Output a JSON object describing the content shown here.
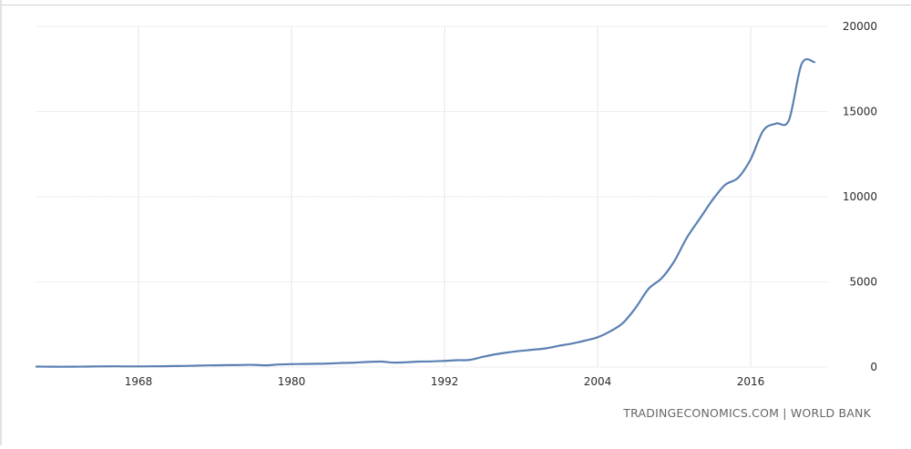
{
  "source_text": "TRADINGECONOMICS.COM | WORLD BANK",
  "colors": {
    "line": "#5b80b2",
    "grid": "#e6e6e6",
    "axis_text": "#2b2b2b",
    "source": "#666666"
  },
  "chart_data": {
    "type": "line",
    "title": "",
    "xlabel": "",
    "ylabel": "",
    "xlim": [
      1960,
      2022
    ],
    "ylim": [
      0,
      20000
    ],
    "x_ticks": [
      1968,
      1980,
      1992,
      2004,
      2016
    ],
    "y_ticks": [
      0,
      5000,
      10000,
      15000,
      20000
    ],
    "grid": true,
    "legend": "none",
    "series": [
      {
        "x": [
          1960,
          1961,
          1962,
          1963,
          1964,
          1965,
          1966,
          1967,
          1968,
          1969,
          1970,
          1971,
          1972,
          1973,
          1974,
          1975,
          1976,
          1977,
          1978,
          1979,
          1980,
          1981,
          1982,
          1983,
          1984,
          1985,
          1986,
          1987,
          1988,
          1989,
          1990,
          1991,
          1992,
          1993,
          1994,
          1995,
          1996,
          1997,
          1998,
          1999,
          2000,
          2001,
          2002,
          2003,
          2004,
          2005,
          2006,
          2007,
          2008,
          2009,
          2010,
          2011,
          2012,
          2013,
          2014,
          2015,
          2016,
          2017,
          2018,
          2019,
          2020,
          2021
        ],
        "y": [
          25,
          20,
          18,
          22,
          28,
          35,
          45,
          40,
          40,
          45,
          50,
          60,
          70,
          90,
          100,
          110,
          120,
          130,
          100,
          150,
          170,
          180,
          190,
          210,
          240,
          260,
          300,
          320,
          260,
          280,
          320,
          330,
          360,
          400,
          420,
          600,
          750,
          860,
          950,
          1020,
          1100,
          1250,
          1380,
          1550,
          1750,
          2100,
          2600,
          3500,
          4600,
          5200,
          6200,
          7600,
          8700,
          9800,
          10700,
          11100,
          12200,
          13900,
          14300,
          14500,
          17800,
          17900
        ]
      }
    ]
  }
}
